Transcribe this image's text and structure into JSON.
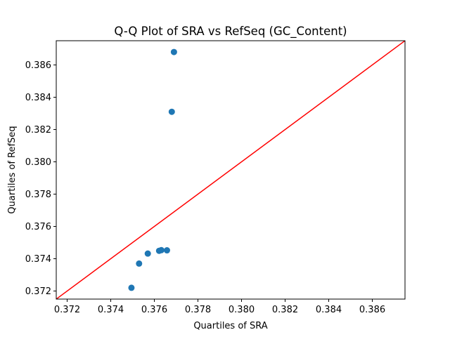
{
  "chart_data": {
    "type": "scatter",
    "title": "Q-Q Plot of SRA vs RefSeq (GC_Content)",
    "xlabel": "Quartiles of SRA",
    "ylabel": "Quartiles of RefSeq",
    "xlim": [
      0.3715,
      0.3875
    ],
    "ylim": [
      0.3715,
      0.3875
    ],
    "xticks": [
      0.372,
      0.374,
      0.376,
      0.378,
      0.38,
      0.382,
      0.384,
      0.386
    ],
    "xtick_labels": [
      "0.372",
      "0.374",
      "0.376",
      "0.378",
      "0.380",
      "0.382",
      "0.384",
      "0.386"
    ],
    "yticks": [
      0.372,
      0.374,
      0.376,
      0.378,
      0.38,
      0.382,
      0.384,
      0.386
    ],
    "ytick_labels": [
      "0.372",
      "0.374",
      "0.376",
      "0.378",
      "0.380",
      "0.382",
      "0.384",
      "0.386"
    ],
    "points": [
      {
        "x": 0.37495,
        "y": 0.3722
      },
      {
        "x": 0.3753,
        "y": 0.3737
      },
      {
        "x": 0.3757,
        "y": 0.37432
      },
      {
        "x": 0.37622,
        "y": 0.37449
      },
      {
        "x": 0.37632,
        "y": 0.37453
      },
      {
        "x": 0.37658,
        "y": 0.37452
      },
      {
        "x": 0.3768,
        "y": 0.3831
      },
      {
        "x": 0.3769,
        "y": 0.3868
      }
    ],
    "reference_line": {
      "from": [
        0.3715,
        0.3715
      ],
      "to": [
        0.3875,
        0.3875
      ],
      "color": "#ff0000"
    },
    "marker_color": "#1f77b4",
    "grid": false,
    "legend": "none"
  }
}
